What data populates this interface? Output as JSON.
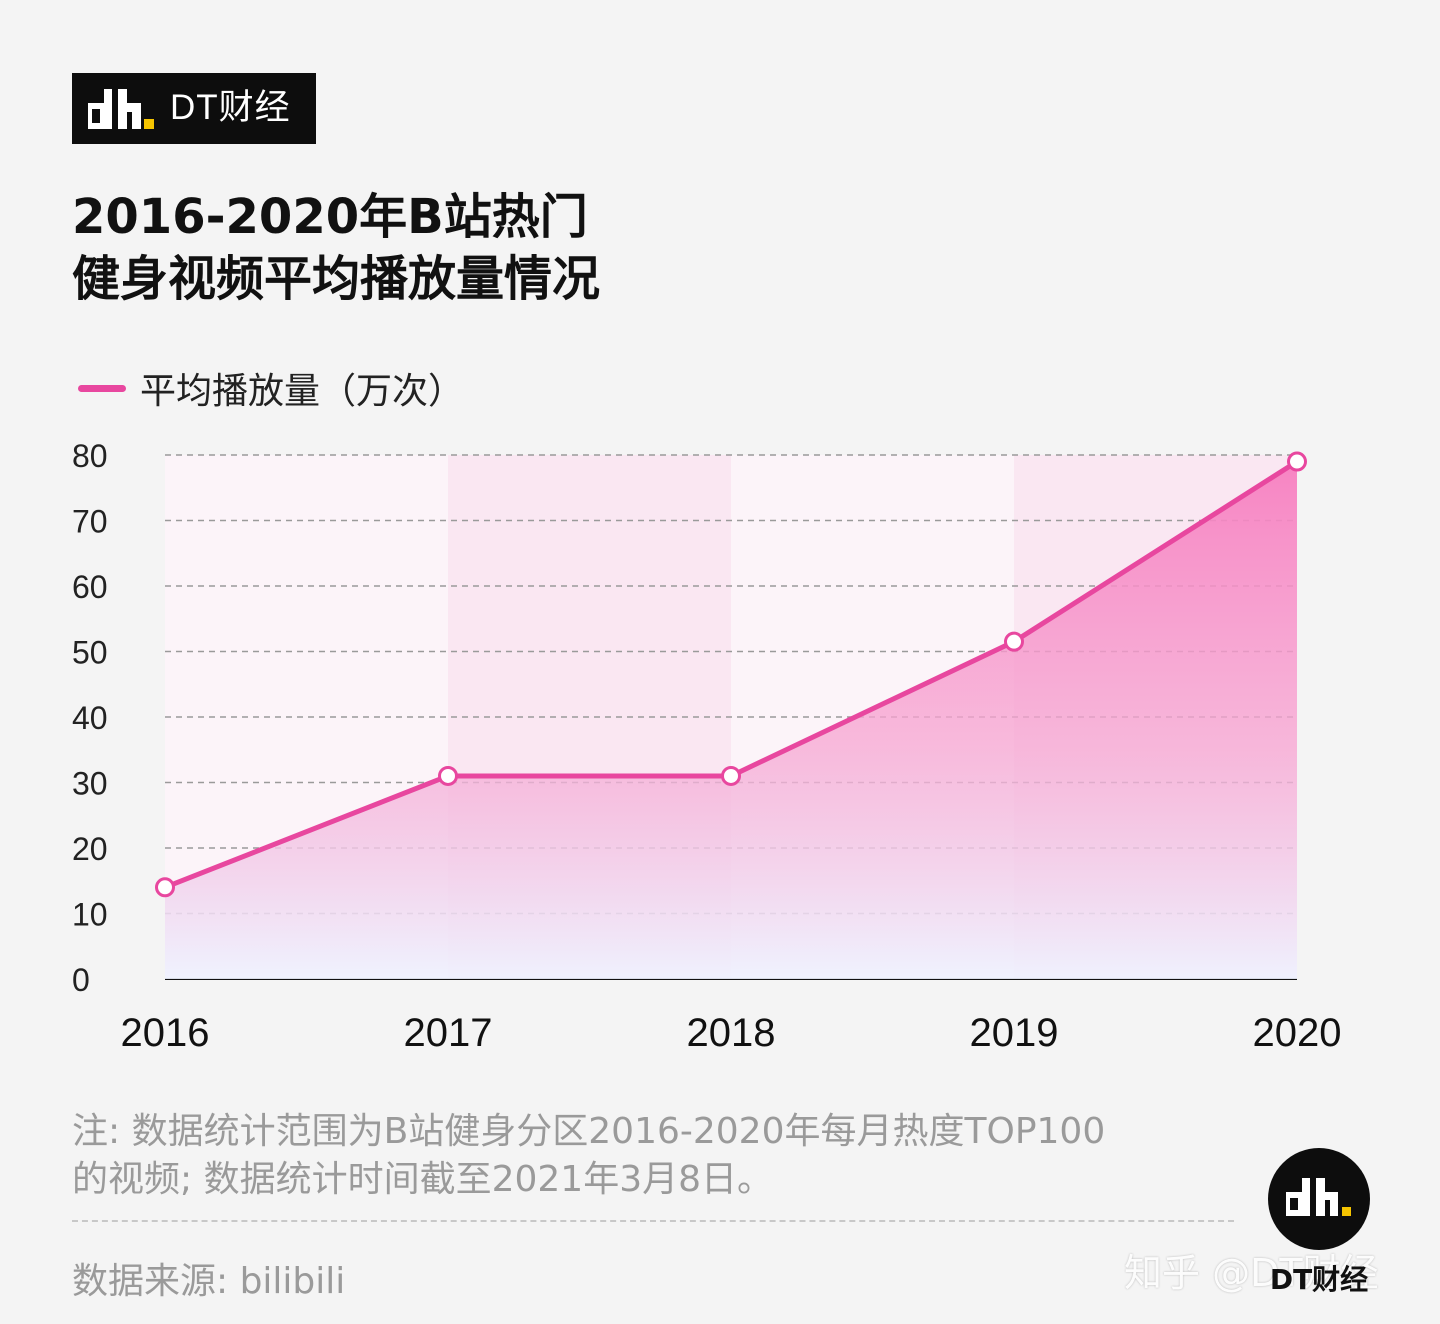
{
  "brand": {
    "name": "DT财经"
  },
  "title": {
    "line1": "2016-2020年B站热门",
    "line2": "健身视频平均播放量情况"
  },
  "legend": {
    "label": "平均播放量（万次）",
    "color": "#e8479f"
  },
  "chart_data": {
    "type": "area",
    "x": [
      "2016",
      "2017",
      "2018",
      "2019",
      "2020"
    ],
    "series": [
      {
        "name": "平均播放量（万次）",
        "values": [
          14,
          31,
          31,
          51.5,
          79
        ]
      }
    ],
    "yticks": [
      "0",
      "10",
      "20",
      "30",
      "40",
      "50",
      "60",
      "70",
      "80"
    ],
    "ylim": [
      0,
      80
    ],
    "grid": true,
    "legend_position": "top-left",
    "line_color": "#e8479f"
  },
  "note": {
    "line1": "注: 数据统计范围为B站健身分区2016-2020年每月热度TOP100",
    "line2": "的视频; 数据统计时间截至2021年3月8日。"
  },
  "source": "数据来源: bilibili",
  "zhihu_watermark": "知乎 @DT财经",
  "corner_brand": "DT财经"
}
